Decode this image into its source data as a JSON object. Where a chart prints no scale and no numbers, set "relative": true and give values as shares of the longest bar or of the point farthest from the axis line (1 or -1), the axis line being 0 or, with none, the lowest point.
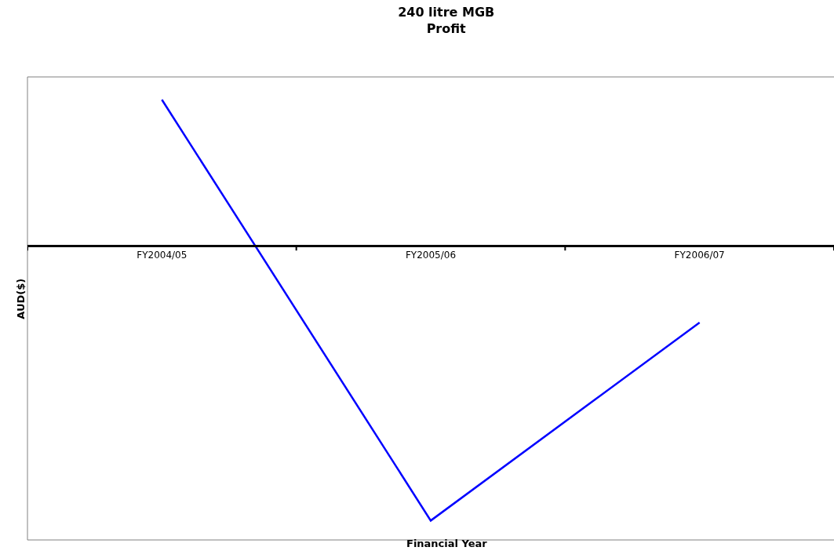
{
  "chart_data": {
    "type": "line",
    "title": "240 litre MGB\nProfit",
    "xlabel": "Financial Year",
    "ylabel": "AUD($)",
    "relative": true,
    "categories": [
      "FY2004/05",
      "FY2005/06",
      "FY2006/07"
    ],
    "series": [
      {
        "color": "#0000ff",
        "values": [
          0.53,
          -1,
          -0.28
        ]
      }
    ],
    "grid": false,
    "legend": false,
    "marker": "none",
    "line_style": "solid"
  }
}
